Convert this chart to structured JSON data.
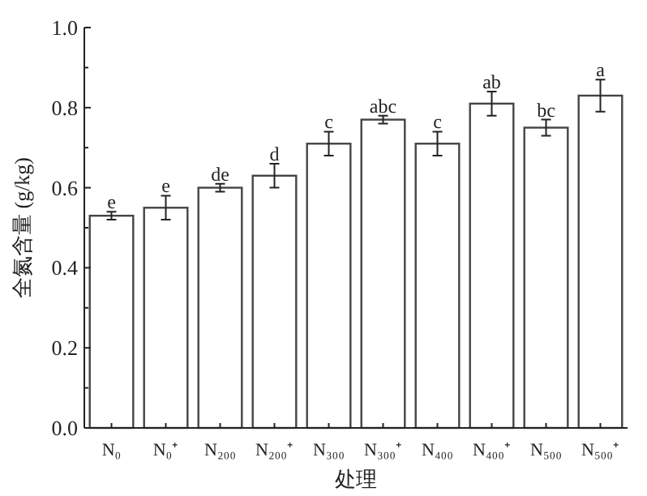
{
  "chart_data": {
    "type": "bar",
    "xlabel": "处理",
    "ylabel": "全氮含量 (g/kg)",
    "categories": [
      "N₀",
      "N₀⁺",
      "N₂₀₀",
      "N₂₀₀⁺",
      "N₃₀₀",
      "N₃₀₀⁺",
      "N₄₀₀",
      "N₄₀₀⁺",
      "N₅₀₀",
      "N₅₀₀⁺"
    ],
    "values": [
      0.53,
      0.55,
      0.6,
      0.63,
      0.71,
      0.77,
      0.71,
      0.81,
      0.75,
      0.83
    ],
    "errors": [
      0.01,
      0.03,
      0.01,
      0.03,
      0.03,
      0.01,
      0.03,
      0.03,
      0.02,
      0.04
    ],
    "color": "#ffffff",
    "ylim": [
      0,
      1.0
    ],
    "yticks": [
      {
        "value": 0,
        "label": "0.0"
      },
      {
        "value": 0.2,
        "label": "0.2"
      },
      {
        "value": 0.4,
        "label": "0.4"
      },
      {
        "value": 0.6,
        "label": "0.6"
      },
      {
        "value": 0.8,
        "label": "0.8"
      },
      {
        "value": 1.0,
        "label": "1.0"
      }
    ],
    "grid": false,
    "annotations": [
      {
        "text": "e",
        "x": "N₀",
        "y": 0.54
      },
      {
        "text": "e",
        "x": "N₀⁺",
        "y": 0.58
      },
      {
        "text": "de",
        "x": "N₂₀₀",
        "y": 0.61
      },
      {
        "text": "d",
        "x": "N₂₀₀⁺",
        "y": 0.66
      },
      {
        "text": "c",
        "x": "N₃₀₀",
        "y": 0.74
      },
      {
        "text": "abc",
        "x": "N₃₀₀⁺",
        "y": 0.78
      },
      {
        "text": "c",
        "x": "N₄₀₀",
        "y": 0.74
      },
      {
        "text": "ab",
        "x": "N₄₀₀⁺",
        "y": 0.84
      },
      {
        "text": "bc",
        "x": "N₅₀₀",
        "y": 0.77
      },
      {
        "text": "a",
        "x": "N₅₀₀⁺",
        "y": 0.87
      }
    ]
  }
}
